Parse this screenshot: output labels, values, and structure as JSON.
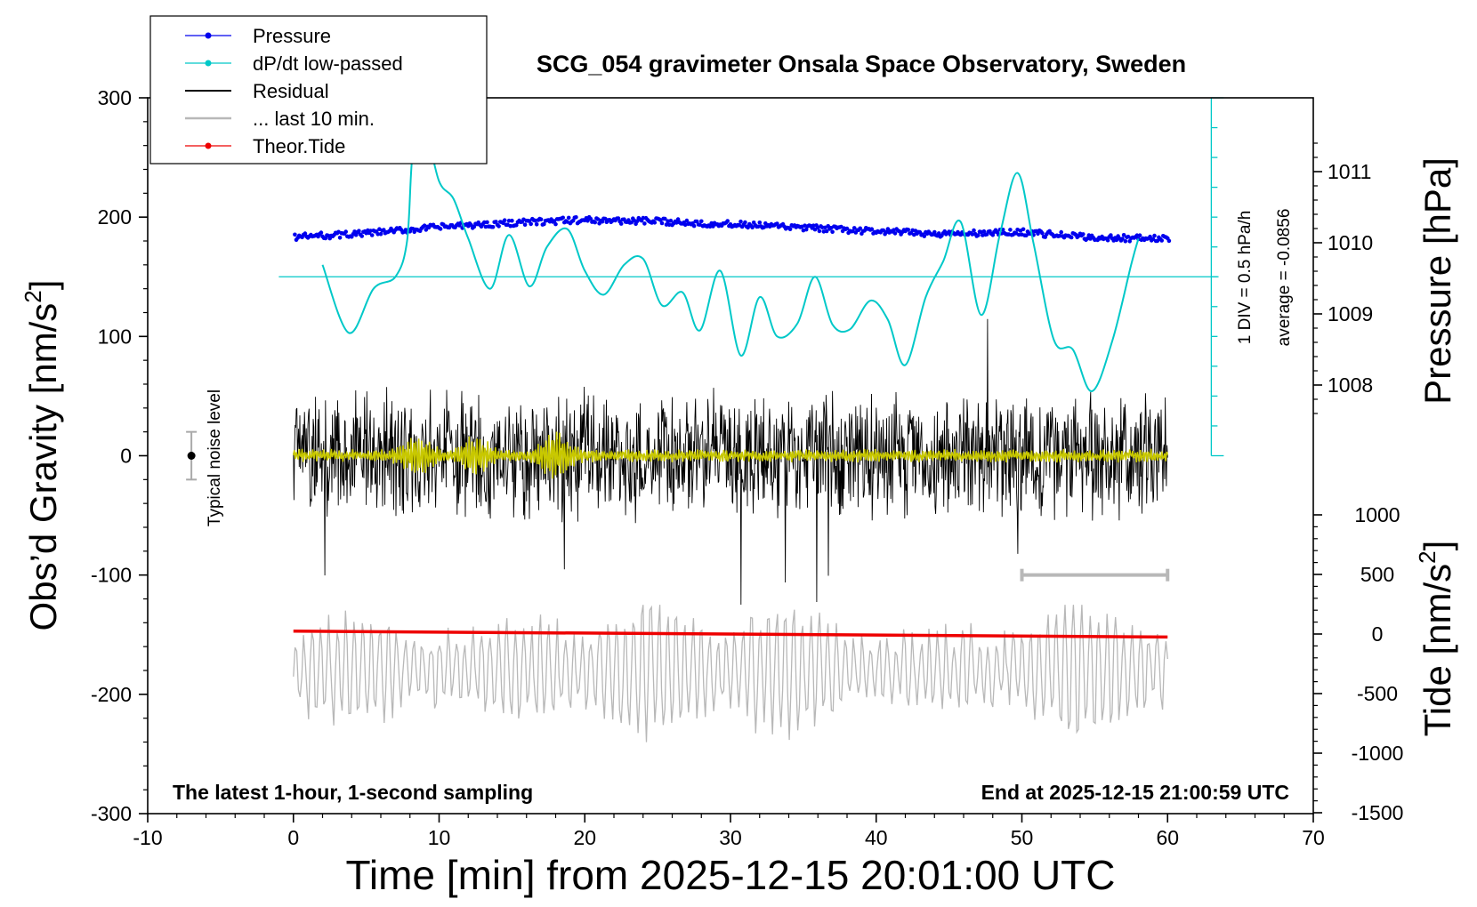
{
  "chart_data": {
    "type": "line",
    "title": "SCG_054 gravimeter Onsala Space Observatory, Sweden",
    "xlabel": "Time [min] from 2025-12-15 20:01:00 UTC",
    "xlim": [
      -10,
      70
    ],
    "xticks": [
      -10,
      0,
      10,
      20,
      30,
      40,
      50,
      60,
      70
    ],
    "left_axis": {
      "label_main": "Obs’d Gravity [nm/s",
      "label_sup": "2",
      "label_close": "]",
      "ylim": [
        -300,
        300
      ],
      "ticks": [
        -300,
        -200,
        -100,
        0,
        100,
        200,
        300
      ]
    },
    "pressure_axis": {
      "label": "Pressure [hPa]",
      "ticks": [
        1008,
        1009,
        1010,
        1011
      ]
    },
    "tide_axis": {
      "label_main": "Tide [nm/s",
      "label_sup": "2",
      "label_close": "]",
      "ticks": [
        -1500,
        -1000,
        -500,
        0,
        500,
        1000
      ]
    },
    "legend": [
      {
        "label": "Pressure",
        "color": "#0000ee",
        "marker": true
      },
      {
        "label": "dP/dt low-passed",
        "color": "#00c8c8",
        "marker": true
      },
      {
        "label": "Residual",
        "color": "#000000",
        "marker": false
      },
      {
        "label": "... last 10 min.",
        "color": "#b8b8b8",
        "marker": false
      },
      {
        "label": "Theor.Tide",
        "color": "#ee0000",
        "marker": true
      }
    ],
    "annotations": {
      "bottom_left": "The latest 1-hour, 1-second sampling",
      "bottom_right": "End at 2025-12-15 21:00:59 UTC",
      "noise": "Typical noise level",
      "dpdt_scale": "1 DIV = 0.5 hPa/h",
      "dpdt_avg": "average = -0.0856"
    },
    "noise_bar": {
      "x": -7,
      "y": 0,
      "halfrange": 20
    },
    "last10_bar": {
      "x_start": 50,
      "x_end": 60
    },
    "series": [
      {
        "name": "Pressure",
        "unit": "hPa",
        "color": "#0000ee",
        "x": [
          0,
          5,
          10,
          15,
          20,
          25,
          30,
          35,
          40,
          45,
          50,
          55,
          60
        ],
        "values": [
          1010.08,
          1010.13,
          1010.22,
          1010.28,
          1010.32,
          1010.3,
          1010.26,
          1010.21,
          1010.16,
          1010.12,
          1010.15,
          1010.07,
          1010.06
        ]
      },
      {
        "name": "dP/dt low-passed",
        "unit": "nm/s2 equivalent position",
        "color": "#00c8c8",
        "x": [
          2,
          3.8,
          5.5,
          7,
          7.8,
          8.2,
          9,
          10,
          11,
          12,
          13.5,
          14.8,
          16.2,
          17.4,
          18.8,
          20,
          21.3,
          22.7,
          24,
          25.3,
          26.7,
          27.9,
          29.3,
          30.7,
          32,
          33.2,
          34.6,
          35.8,
          37,
          38.2,
          39.6,
          40.8,
          42,
          43.4,
          44.6,
          45.8,
          47.2,
          48.5,
          49.7,
          50.8,
          52.2,
          53.5,
          54.8,
          56.2,
          57.5,
          58
        ],
        "values": [
          160,
          103,
          140,
          150,
          180,
          255,
          275,
          230,
          215,
          182,
          140,
          185,
          142,
          175,
          190,
          155,
          135,
          160,
          165,
          126,
          137,
          105,
          155,
          84,
          133,
          100,
          111,
          150,
          110,
          106,
          130,
          114,
          76,
          133,
          163,
          196,
          118,
          186,
          237,
          178,
          97,
          89,
          54,
          96,
          160,
          182
        ]
      },
      {
        "name": "Residual",
        "unit": "nm/s2",
        "color": "#000000",
        "x_range": [
          0,
          60
        ],
        "amplitude_typical": 60,
        "amplitude_peak": 125
      },
      {
        "name": "Residual low-passed",
        "unit": "nm/s2",
        "color": "#c8c800",
        "x_range": [
          0,
          60
        ],
        "amplitude_typical": 4,
        "bursts_at": [
          8.5,
          12.5,
          18
        ]
      },
      {
        "name": "... last 10 min.",
        "unit": "nm/s2",
        "color": "#b8b8b8",
        "x_range": [
          0,
          60
        ],
        "center": -180,
        "amplitude": 55
      },
      {
        "name": "Theor.Tide",
        "unit": "nm/s2",
        "color": "#ee0000",
        "x": [
          0,
          60
        ],
        "values": [
          -147,
          -152
        ]
      }
    ]
  }
}
